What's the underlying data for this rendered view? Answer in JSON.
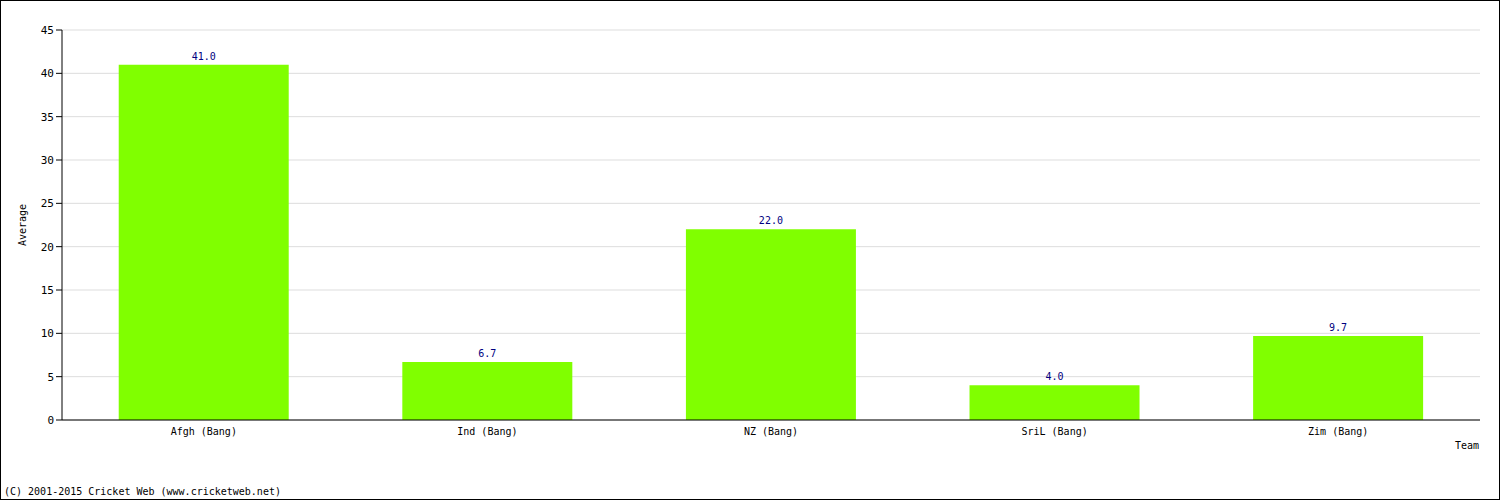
{
  "chart_data": {
    "type": "bar",
    "x_label": "Team",
    "y_label": "Average",
    "annotation": "(C) 2001-2015 Cricket Web (www.cricketweb.net)",
    "categories": [
      "Afgh (Bang)",
      "Ind (Bang)",
      "NZ (Bang)",
      "SriL (Bang)",
      "Zim (Bang)"
    ],
    "values": [
      41,
      6.7,
      22,
      4,
      9.7
    ],
    "value_labels": [
      "41.0",
      "6.7",
      "22.0",
      "4.0",
      "9.7"
    ],
    "data_labels": true,
    "color": "#80ff00",
    "ylim": [
      0,
      45
    ],
    "yticks": [
      0,
      5,
      10,
      15,
      20,
      25,
      30,
      35,
      40,
      45
    ],
    "grid": true
  }
}
